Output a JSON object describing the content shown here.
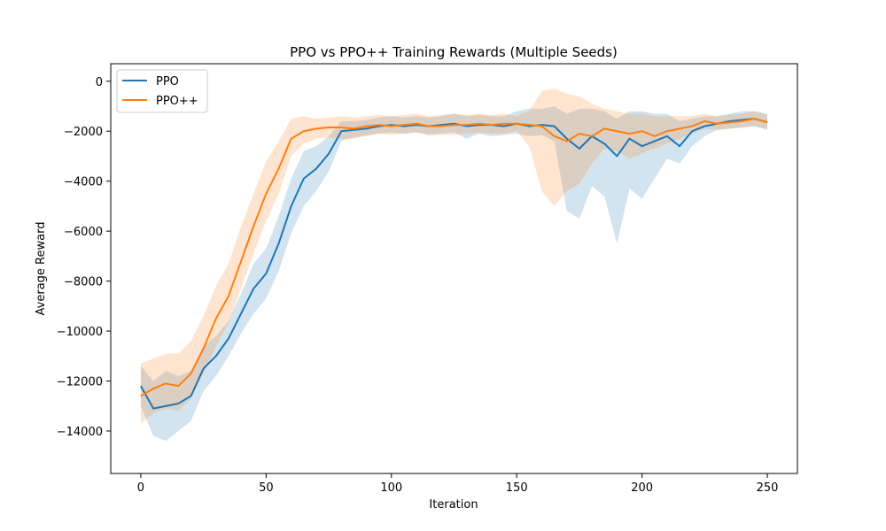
{
  "chart_data": {
    "type": "line",
    "title": "PPO vs PPO++ Training Rewards (Multiple Seeds)",
    "xlabel": "Iteration",
    "ylabel": "Average Reward",
    "xlim": [
      -12,
      262
    ],
    "ylim": [
      -15700,
      700
    ],
    "xticks": [
      0,
      50,
      100,
      150,
      200,
      250
    ],
    "yticks": [
      0,
      -2000,
      -4000,
      -6000,
      -8000,
      -10000,
      -12000,
      -14000
    ],
    "ytick_labels": [
      "0",
      "−2000",
      "−4000",
      "−6000",
      "−8000",
      "−10000",
      "−12000",
      "−14000"
    ],
    "grid": false,
    "legend_position": "top-left",
    "series": [
      {
        "name": "PPO",
        "color": "#1f77b4",
        "x": [
          0,
          5,
          10,
          15,
          20,
          25,
          30,
          35,
          40,
          45,
          50,
          55,
          60,
          65,
          70,
          75,
          80,
          85,
          90,
          95,
          100,
          105,
          110,
          115,
          120,
          125,
          130,
          135,
          140,
          145,
          150,
          155,
          160,
          165,
          170,
          175,
          180,
          185,
          190,
          195,
          200,
          205,
          210,
          215,
          220,
          225,
          230,
          235,
          240,
          245,
          250
        ],
        "y": [
          -12200,
          -13100,
          -13000,
          -12900,
          -12600,
          -11500,
          -11000,
          -10300,
          -9300,
          -8300,
          -7700,
          -6500,
          -5000,
          -3900,
          -3500,
          -2900,
          -2000,
          -1950,
          -1900,
          -1800,
          -1750,
          -1800,
          -1750,
          -1800,
          -1750,
          -1700,
          -1800,
          -1750,
          -1750,
          -1800,
          -1700,
          -1800,
          -1750,
          -1800,
          -2300,
          -2700,
          -2200,
          -2500,
          -3000,
          -2300,
          -2600,
          -2400,
          -2200,
          -2600,
          -2000,
          -1800,
          -1700,
          -1600,
          -1550,
          -1500,
          -1650
        ],
        "band_lower": [
          -13000,
          -14200,
          -14400,
          -14000,
          -13600,
          -12400,
          -11800,
          -11000,
          -10100,
          -9300,
          -8700,
          -7600,
          -6100,
          -5000,
          -4400,
          -3600,
          -2400,
          -2250,
          -2200,
          -2100,
          -2050,
          -2100,
          -2050,
          -2150,
          -2100,
          -2050,
          -2300,
          -2100,
          -2200,
          -2150,
          -2100,
          -2200,
          -2150,
          -2400,
          -5200,
          -5500,
          -4200,
          -4600,
          -6500,
          -4300,
          -4700,
          -3900,
          -3100,
          -3300,
          -2600,
          -2200,
          -1950,
          -1900,
          -1850,
          -1800,
          -1950
        ],
        "band_upper": [
          -11400,
          -12000,
          -11600,
          -11800,
          -11600,
          -10600,
          -10200,
          -9600,
          -8500,
          -7300,
          -6700,
          -5400,
          -3900,
          -2800,
          -2600,
          -2200,
          -1600,
          -1600,
          -1550,
          -1450,
          -1400,
          -1450,
          -1400,
          -1450,
          -1400,
          -1300,
          -1400,
          -1350,
          -1400,
          -1400,
          -1200,
          -1100,
          -1100,
          -1000,
          -1300,
          -1100,
          -1100,
          -1200,
          -1500,
          -1200,
          -1200,
          -1300,
          -1300,
          -1600,
          -1500,
          -1400,
          -1400,
          -1300,
          -1200,
          -1200,
          -1300
        ]
      },
      {
        "name": "PPO++",
        "color": "#ff7f0e",
        "x": [
          0,
          5,
          10,
          15,
          20,
          25,
          30,
          35,
          40,
          45,
          50,
          55,
          60,
          65,
          70,
          75,
          80,
          85,
          90,
          95,
          100,
          105,
          110,
          115,
          120,
          125,
          130,
          135,
          140,
          145,
          150,
          155,
          160,
          165,
          170,
          175,
          180,
          185,
          190,
          195,
          200,
          205,
          210,
          215,
          220,
          225,
          230,
          235,
          240,
          245,
          250
        ],
        "y": [
          -12600,
          -12300,
          -12100,
          -12200,
          -11700,
          -10700,
          -9500,
          -8600,
          -7200,
          -5800,
          -4500,
          -3500,
          -2300,
          -2000,
          -1900,
          -1850,
          -1850,
          -1900,
          -1800,
          -1750,
          -1800,
          -1750,
          -1700,
          -1800,
          -1800,
          -1750,
          -1750,
          -1700,
          -1750,
          -1700,
          -1700,
          -1750,
          -1800,
          -2200,
          -2400,
          -2100,
          -2200,
          -1900,
          -2000,
          -2100,
          -2000,
          -2200,
          -2000,
          -1900,
          -1800,
          -1600,
          -1700,
          -1650,
          -1600,
          -1500,
          -1650
        ],
        "band_lower": [
          -13700,
          -13300,
          -13100,
          -13200,
          -12700,
          -11700,
          -10600,
          -9700,
          -8300,
          -6900,
          -5600,
          -4500,
          -3000,
          -2500,
          -2300,
          -2250,
          -2300,
          -2300,
          -2150,
          -2100,
          -2150,
          -2100,
          -2050,
          -2150,
          -2150,
          -2150,
          -2100,
          -2050,
          -2100,
          -2100,
          -2000,
          -2600,
          -4400,
          -5000,
          -4400,
          -4100,
          -3300,
          -2700,
          -2800,
          -3100,
          -2900,
          -2700,
          -2500,
          -2300,
          -2100,
          -1900,
          -1950,
          -1900,
          -1850,
          -1800,
          -1900
        ],
        "band_upper": [
          -11300,
          -11100,
          -10900,
          -10900,
          -10400,
          -9400,
          -8200,
          -7300,
          -5800,
          -4500,
          -3200,
          -2400,
          -1500,
          -1400,
          -1500,
          -1450,
          -1400,
          -1450,
          -1400,
          -1350,
          -1400,
          -1350,
          -1300,
          -1400,
          -1350,
          -1300,
          -1350,
          -1300,
          -1350,
          -1300,
          -1400,
          -1200,
          -400,
          -300,
          -500,
          -600,
          -900,
          -1100,
          -1200,
          -1300,
          -1300,
          -1400,
          -1400,
          -1400,
          -1400,
          -1300,
          -1400,
          -1350,
          -1300,
          -1200,
          -1350
        ]
      }
    ]
  }
}
